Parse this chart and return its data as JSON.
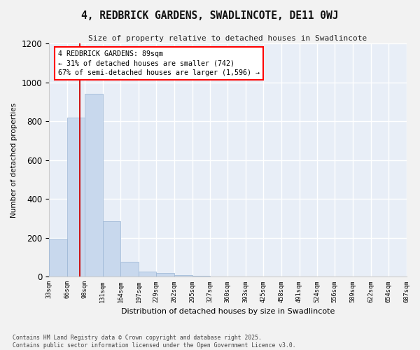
{
  "title": "4, REDBRICK GARDENS, SWADLINCOTE, DE11 0WJ",
  "subtitle": "Size of property relative to detached houses in Swadlincote",
  "xlabel": "Distribution of detached houses by size in Swadlincote",
  "ylabel": "Number of detached properties",
  "bar_color": "#c8d8ed",
  "bar_edge_color": "#9ab5d4",
  "plot_bg_color": "#e8eef7",
  "fig_bg_color": "#f2f2f2",
  "grid_color": "#ffffff",
  "annotation_box_text": "4 REDBRICK GARDENS: 89sqm\n← 31% of detached houses are smaller (742)\n67% of semi-detached houses are larger (1,596) →",
  "property_line_x": 89,
  "property_line_color": "#cc0000",
  "bins": [
    33,
    66,
    98,
    131,
    164,
    197,
    229,
    262,
    295,
    327,
    360,
    393,
    425,
    458,
    491,
    524,
    556,
    589,
    622,
    654,
    687
  ],
  "bar_heights": [
    197,
    820,
    940,
    285,
    75,
    28,
    18,
    10,
    5,
    2,
    0,
    0,
    0,
    0,
    0,
    0,
    0,
    0,
    0,
    0
  ],
  "ylim": [
    0,
    1200
  ],
  "yticks": [
    0,
    200,
    400,
    600,
    800,
    1000,
    1200
  ],
  "footer_text": "Contains HM Land Registry data © Crown copyright and database right 2025.\nContains public sector information licensed under the Open Government Licence v3.0."
}
